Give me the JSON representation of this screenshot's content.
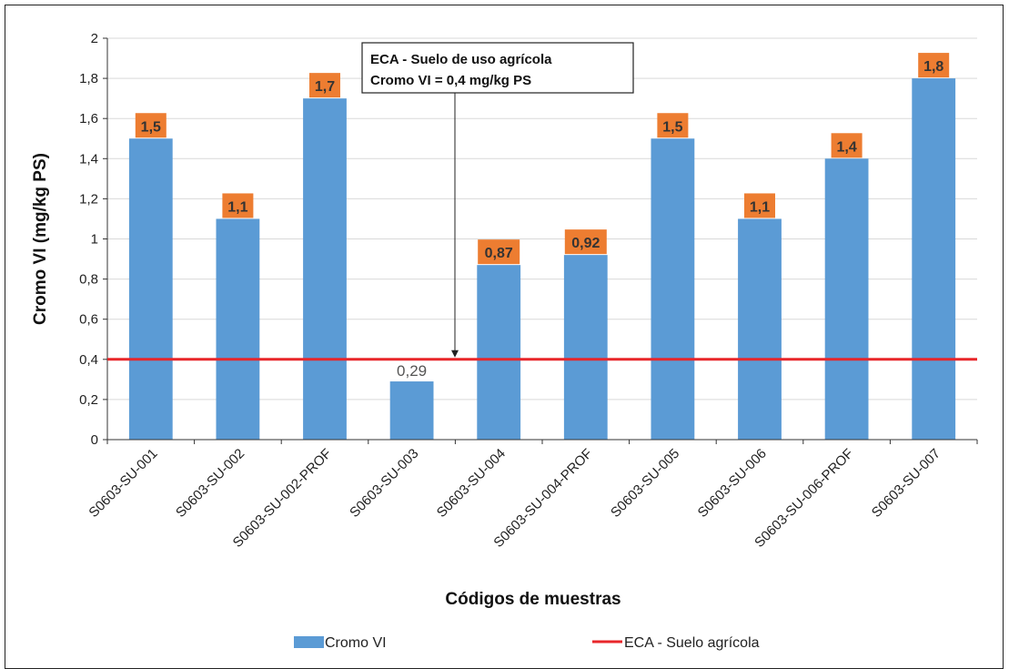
{
  "chart_data": {
    "type": "bar",
    "categories": [
      "S0603-SU-001",
      "S0603-SU-002",
      "S0603-SU-002-PROF",
      "S0603-SU-003",
      "S0603-SU-004",
      "S0603-SU-004-PROF",
      "S0603-SU-005",
      "S0603-SU-006",
      "S0603-SU-006-PROF",
      "S0603-SU-007"
    ],
    "series": [
      {
        "name": "Cromo VI",
        "values": [
          1.5,
          1.1,
          1.7,
          0.29,
          0.87,
          0.92,
          1.5,
          1.1,
          1.4,
          1.8
        ],
        "labels": [
          "1,5",
          "1,1",
          "1,7",
          "0,29",
          "0,87",
          "0,92",
          "1,5",
          "1,1",
          "1,4",
          "1,8"
        ],
        "label_highlighted": [
          true,
          true,
          true,
          false,
          true,
          true,
          true,
          true,
          true,
          true
        ],
        "color": "#5B9BD5"
      },
      {
        "name": "ECA - Suelo agrícola",
        "type": "line",
        "value": 0.4,
        "color": "#E8262A"
      }
    ],
    "label_box_color": "#ED7D31",
    "xlabel": "Códigos de muestras",
    "ylabel": "Cromo VI (mg/kg PS)",
    "ylim": [
      0,
      2
    ],
    "yticks": [
      0,
      0.2,
      0.4,
      0.6,
      0.8,
      1,
      1.2,
      1.4,
      1.6,
      1.8,
      2
    ],
    "ytick_labels": [
      "0",
      "0,2",
      "0,4",
      "0,6",
      "0,8",
      "1",
      "1,2",
      "1,4",
      "1,6",
      "1,8",
      "2"
    ],
    "grid": true,
    "legend_position": "bottom",
    "annotation": {
      "lines": [
        "ECA - Suelo de uso agrícola",
        "Cromo VI = 0,4 mg/kg PS"
      ],
      "points_to": 0.4
    }
  }
}
